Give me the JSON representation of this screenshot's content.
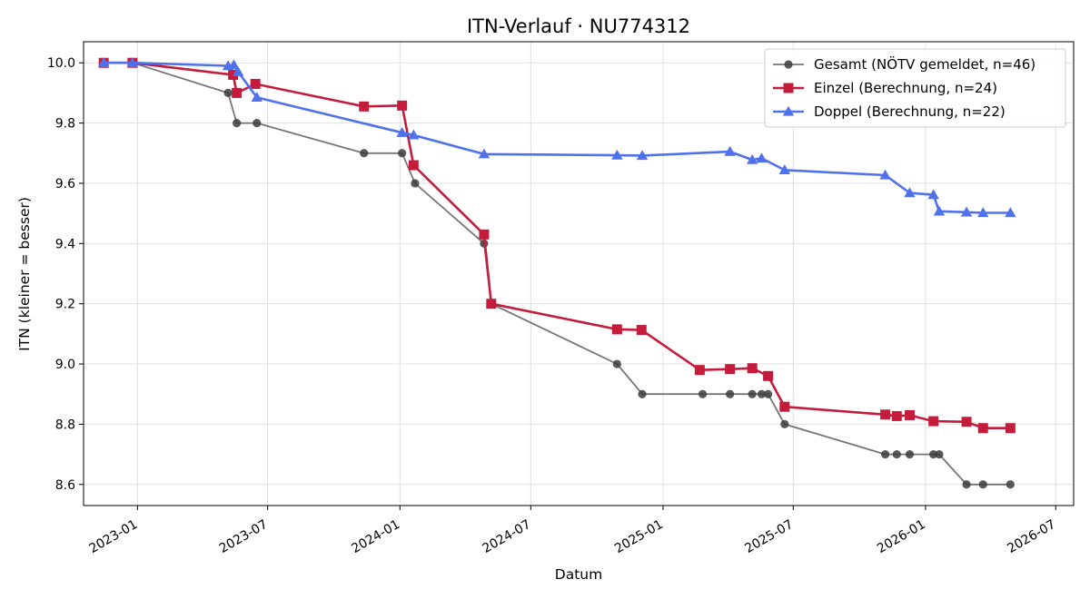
{
  "chart_data": {
    "type": "line",
    "title": "ITN-Verlauf · NU774312",
    "xlabel": "Datum",
    "ylabel": "ITN  (kleiner = besser)",
    "xlim": [
      "2022-10-18",
      "2026-07-26"
    ],
    "ylim": [
      8.53,
      10.07
    ],
    "grid": true,
    "legend_position": "top-right",
    "x_ticks": [
      "2023-01",
      "2023-07",
      "2024-01",
      "2024-07",
      "2025-01",
      "2025-07",
      "2026-01",
      "2026-07"
    ],
    "y_ticks": [
      8.6,
      8.8,
      9.0,
      9.2,
      9.4,
      9.6,
      9.8,
      10.0
    ],
    "series": [
      {
        "name": "Gesamt (NÖTV gemeldet, n=46)",
        "color": "#3c3c3c",
        "marker": "circle",
        "points": [
          [
            "2022-11-15",
            10.0
          ],
          [
            "2022-12-25",
            10.0
          ],
          [
            "2023-05-07",
            9.9
          ],
          [
            "2023-05-19",
            9.8
          ],
          [
            "2023-06-16",
            9.8
          ],
          [
            "2023-11-12",
            9.7
          ],
          [
            "2024-01-04",
            9.7
          ],
          [
            "2024-01-22",
            9.6
          ],
          [
            "2024-04-27",
            9.4
          ],
          [
            "2024-05-07",
            9.2
          ],
          [
            "2024-10-29",
            9.0
          ],
          [
            "2024-12-03",
            8.9
          ],
          [
            "2025-02-25",
            8.9
          ],
          [
            "2025-04-04",
            8.9
          ],
          [
            "2025-05-05",
            8.9
          ],
          [
            "2025-05-18",
            8.9
          ],
          [
            "2025-05-27",
            8.9
          ],
          [
            "2025-06-19",
            8.8
          ],
          [
            "2025-11-06",
            8.7
          ],
          [
            "2025-11-22",
            8.7
          ],
          [
            "2025-12-10",
            8.7
          ],
          [
            "2026-01-12",
            8.7
          ],
          [
            "2026-01-20",
            8.7
          ],
          [
            "2026-02-27",
            8.6
          ],
          [
            "2026-03-22",
            8.6
          ],
          [
            "2026-04-29",
            8.6
          ]
        ]
      },
      {
        "name": "Einzel (Berechnung, n=24)",
        "color": "#c61c3c",
        "marker": "square",
        "points": [
          [
            "2022-11-15",
            10.0
          ],
          [
            "2022-12-25",
            10.0
          ],
          [
            "2023-05-14",
            9.96
          ],
          [
            "2023-05-19",
            9.9
          ],
          [
            "2023-06-14",
            9.93
          ],
          [
            "2023-11-12",
            9.855
          ],
          [
            "2024-01-04",
            9.858
          ],
          [
            "2024-01-20",
            9.66
          ],
          [
            "2024-04-27",
            9.43
          ],
          [
            "2024-05-07",
            9.2
          ],
          [
            "2024-10-29",
            9.115
          ],
          [
            "2024-12-02",
            9.113
          ],
          [
            "2025-02-21",
            8.98
          ],
          [
            "2025-04-04",
            8.983
          ],
          [
            "2025-05-05",
            8.986
          ],
          [
            "2025-05-27",
            8.96
          ],
          [
            "2025-06-19",
            8.858
          ],
          [
            "2025-11-06",
            8.832
          ],
          [
            "2025-11-22",
            8.827
          ],
          [
            "2025-12-10",
            8.83
          ],
          [
            "2026-01-12",
            8.81
          ],
          [
            "2026-02-27",
            8.808
          ],
          [
            "2026-03-22",
            8.787
          ],
          [
            "2026-04-29",
            8.787
          ]
        ]
      },
      {
        "name": "Doppel (Berechnung, n=22)",
        "color": "#4f71eb",
        "marker": "triangle",
        "points": [
          [
            "2022-11-15",
            10.0
          ],
          [
            "2022-12-25",
            10.0
          ],
          [
            "2023-05-07",
            9.99
          ],
          [
            "2023-05-15",
            9.993
          ],
          [
            "2023-05-21",
            9.97
          ],
          [
            "2023-06-16",
            9.885
          ],
          [
            "2024-01-04",
            9.768
          ],
          [
            "2024-01-20",
            9.76
          ],
          [
            "2024-04-27",
            9.697
          ],
          [
            "2024-10-29",
            9.693
          ],
          [
            "2024-12-03",
            9.692
          ],
          [
            "2025-04-04",
            9.705
          ],
          [
            "2025-05-05",
            9.678
          ],
          [
            "2025-05-18",
            9.683
          ],
          [
            "2025-06-19",
            9.644
          ],
          [
            "2025-11-06",
            9.627
          ],
          [
            "2025-12-10",
            9.568
          ],
          [
            "2026-01-12",
            9.562
          ],
          [
            "2026-01-20",
            9.507
          ],
          [
            "2026-02-27",
            9.504
          ],
          [
            "2026-03-22",
            9.502
          ],
          [
            "2026-04-29",
            9.502
          ]
        ]
      }
    ]
  }
}
